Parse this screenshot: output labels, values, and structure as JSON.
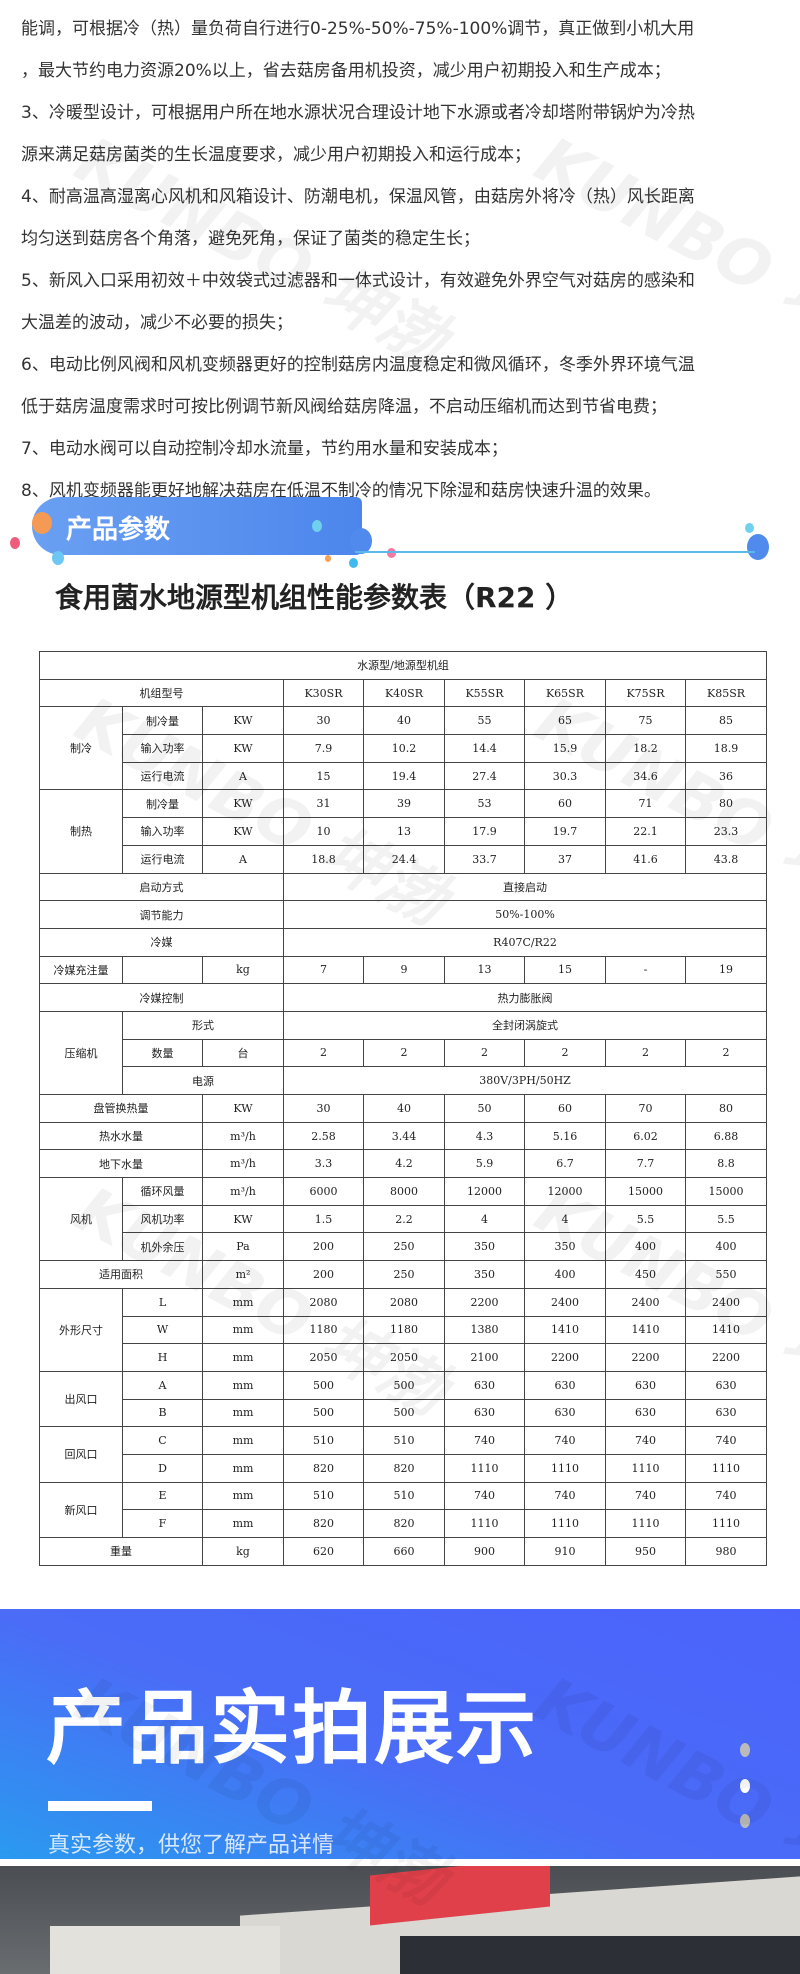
{
  "features": [
    "能调，可根据冷（热）量负荷自行进行0-25%-50%-75%-100%调节，真正做到小机大用",
    "，最大节约电力资源20%以上，省去菇房备用机投资，减少用户初期投入和生产成本；",
    "3、冷暖型设计，可根据用户所在地水源状况合理设计地下水源或者冷却塔附带锅炉为冷热",
    "源来满足菇房菌类的生长温度要求，减少用户初期投入和运行成本；",
    "4、耐高温高湿离心风机和风箱设计、防潮电机，保温风管，由菇房外将冷（热）风长距离",
    "均匀送到菇房各个角落，避免死角，保证了菌类的稳定生长；",
    "5、新风入口采用初效＋中效袋式过滤器和一体式设计，有效避免外界空气对菇房的感染和",
    "大温差的波动，减少不必要的损失；",
    "6、电动比例风阀和风机变频器更好的控制菇房内温度稳定和微风循环，冬季外界环境气温",
    "低于菇房温度需求时可按比例调节新风阀给菇房降温，不启动压缩机而达到节省电费；",
    "7、电动水阀可以自动控制冷却水流量，节约用水量和安装成本；",
    "8、风机变频器能更好地解决菇房在低温不制冷的情况下除湿和菇房快速升温的效果。"
  ],
  "watermark": "KUNBO 坤渤",
  "section_label": "产品参数",
  "table_title": "食用菌水地源型机组性能参数表（R22 ）",
  "table": [
    [
      {
        "t": "水源型/地源型机组",
        "cs": 9
      }
    ],
    [
      {
        "t": "机组型号",
        "cs": 3
      },
      "K30SR",
      "K40SR",
      "K55SR",
      "K65SR",
      "K75SR",
      "K85SR"
    ],
    [
      {
        "t": "制冷",
        "rs": 3
      },
      "制冷量",
      "KW",
      "30",
      "40",
      "55",
      "65",
      "75",
      "85"
    ],
    [
      "输入功率",
      "KW",
      "7.9",
      "10.2",
      "14.4",
      "15.9",
      "18.2",
      "18.9"
    ],
    [
      "运行电流",
      "A",
      "15",
      "19.4",
      "27.4",
      "30.3",
      "34.6",
      "36"
    ],
    [
      {
        "t": "制热",
        "rs": 3
      },
      "制冷量",
      "KW",
      "31",
      "39",
      "53",
      "60",
      "71",
      "80"
    ],
    [
      "输入功率",
      "KW",
      "10",
      "13",
      "17.9",
      "19.7",
      "22.1",
      "23.3"
    ],
    [
      "运行电流",
      "A",
      "18.8",
      "24.4",
      "33.7",
      "37",
      "41.6",
      "43.8"
    ],
    [
      {
        "t": "启动方式",
        "cs": 3
      },
      {
        "t": "直接启动",
        "cs": 6
      }
    ],
    [
      {
        "t": "调节能力",
        "cs": 3
      },
      {
        "t": "50%-100%",
        "cs": 6
      }
    ],
    [
      {
        "t": "冷媒",
        "cs": 3
      },
      {
        "t": "R407C/R22",
        "cs": 6
      }
    ],
    [
      "冷媒充注量",
      "",
      "kg",
      "7",
      "9",
      "13",
      "15",
      "-",
      "19"
    ],
    [
      {
        "t": "冷媒控制",
        "cs": 3
      },
      {
        "t": "热力膨胀阀",
        "cs": 6
      }
    ],
    [
      {
        "t": "压缩机",
        "rs": 3
      },
      {
        "t": "形式",
        "cs": 2
      },
      {
        "t": "全封闭涡旋式",
        "cs": 6
      }
    ],
    [
      "数量",
      "台",
      "2",
      "2",
      "2",
      "2",
      "2",
      "2"
    ],
    [
      {
        "t": "电源",
        "cs": 2
      },
      {
        "t": "380V/3PH/50HZ",
        "cs": 6
      }
    ],
    [
      {
        "t": "盘管换热量",
        "cs": 2
      },
      "KW",
      "30",
      "40",
      "50",
      "60",
      "70",
      "80"
    ],
    [
      {
        "t": "热水水量",
        "cs": 2
      },
      "m³/h",
      "2.58",
      "3.44",
      "4.3",
      "5.16",
      "6.02",
      "6.88"
    ],
    [
      {
        "t": "地下水量",
        "cs": 2
      },
      "m³/h",
      "3.3",
      "4.2",
      "5.9",
      "6.7",
      "7.7",
      "8.8"
    ],
    [
      {
        "t": "风机",
        "rs": 3
      },
      "循环风量",
      "m³/h",
      "6000",
      "8000",
      "12000",
      "12000",
      "15000",
      "15000"
    ],
    [
      "风机功率",
      "KW",
      "1.5",
      "2.2",
      "4",
      "4",
      "5.5",
      "5.5"
    ],
    [
      "机外余压",
      "Pa",
      "200",
      "250",
      "350",
      "350",
      "400",
      "400"
    ],
    [
      {
        "t": "适用面积",
        "cs": 2
      },
      "m²",
      "200",
      "250",
      "350",
      "400",
      "450",
      "550"
    ],
    [
      {
        "t": "外形尺寸",
        "rs": 3
      },
      "L",
      "mm",
      "2080",
      "2080",
      "2200",
      "2400",
      "2400",
      "2400"
    ],
    [
      "W",
      "mm",
      "1180",
      "1180",
      "1380",
      "1410",
      "1410",
      "1410"
    ],
    [
      "H",
      "mm",
      "2050",
      "2050",
      "2100",
      "2200",
      "2200",
      "2200"
    ],
    [
      {
        "t": "出风口",
        "rs": 2
      },
      "A",
      "mm",
      "500",
      "500",
      "630",
      "630",
      "630",
      "630"
    ],
    [
      "B",
      "mm",
      "500",
      "500",
      "630",
      "630",
      "630",
      "630"
    ],
    [
      {
        "t": "回风口",
        "rs": 2
      },
      "C",
      "mm",
      "510",
      "510",
      "740",
      "740",
      "740",
      "740"
    ],
    [
      "D",
      "mm",
      "820",
      "820",
      "1110",
      "1110",
      "1110",
      "1110"
    ],
    [
      {
        "t": "新风口",
        "rs": 2
      },
      "E",
      "mm",
      "510",
      "510",
      "740",
      "740",
      "740",
      "740"
    ],
    [
      "F",
      "mm",
      "820",
      "820",
      "1110",
      "1110",
      "1110",
      "1110"
    ],
    [
      {
        "t": "重量",
        "cs": 2
      },
      "kg",
      "620",
      "660",
      "900",
      "910",
      "950",
      "980"
    ]
  ],
  "showcase": {
    "title": "产品实拍展示",
    "subtitle": "真实参数，供您了解产品详情"
  },
  "colors": {
    "banner_blue": "#4c86ec",
    "showcase_blue": "#4b63fb",
    "accent_cyan": "#5ab8ea"
  }
}
